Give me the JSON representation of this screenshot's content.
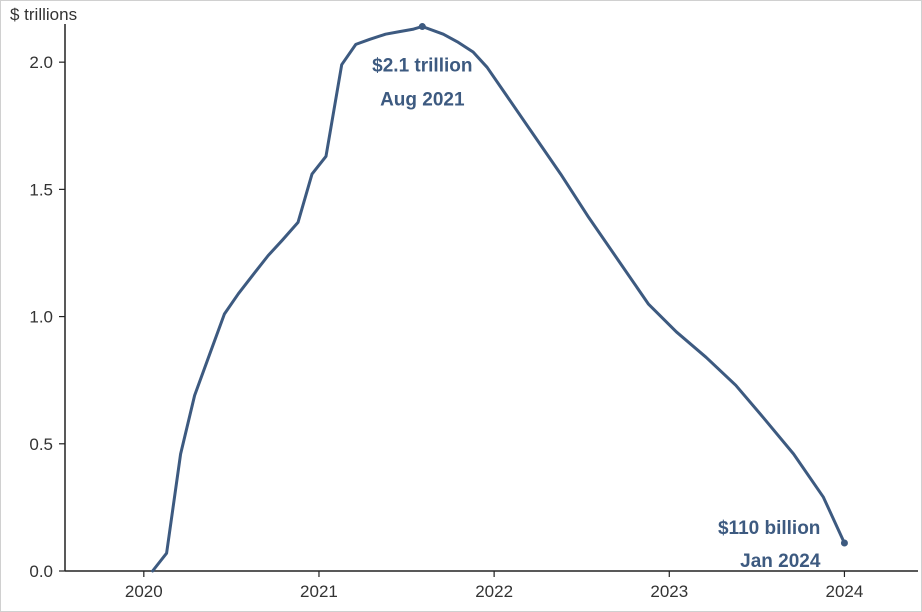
{
  "chart_data": {
    "type": "line",
    "ylabel": "$ trillions",
    "xlim": [
      2019.55,
      2024.42
    ],
    "ylim": [
      0,
      2.15
    ],
    "xticks": [
      "2020",
      "2021",
      "2022",
      "2023",
      "2024"
    ],
    "yticks": [
      "0.0",
      "0.5",
      "1.0",
      "1.5",
      "2.0"
    ],
    "grid": false,
    "line_color": "#3d5a80",
    "series": [
      {
        "x": [
          2020.05,
          2020.13,
          2020.21,
          2020.29,
          2020.38,
          2020.46,
          2020.54,
          2020.63,
          2020.71,
          2020.79,
          2020.88,
          2020.96,
          2021.04,
          2021.13,
          2021.21,
          2021.29,
          2021.38,
          2021.46,
          2021.54,
          2021.59,
          2021.71,
          2021.79,
          2021.88,
          2021.96,
          2022.04,
          2022.21,
          2022.38,
          2022.54,
          2022.71,
          2022.88,
          2023.04,
          2023.21,
          2023.38,
          2023.54,
          2023.71,
          2023.88,
          2024.0
        ],
        "y": [
          0.0,
          0.07,
          0.46,
          0.69,
          0.86,
          1.01,
          1.09,
          1.17,
          1.24,
          1.3,
          1.37,
          1.56,
          1.63,
          1.99,
          2.07,
          2.09,
          2.11,
          2.12,
          2.13,
          2.14,
          2.11,
          2.08,
          2.04,
          1.98,
          1.9,
          1.73,
          1.56,
          1.39,
          1.22,
          1.05,
          0.94,
          0.84,
          0.73,
          0.6,
          0.46,
          0.29,
          0.11
        ]
      }
    ],
    "annotations": [
      {
        "label_line1": "$2.1 trillion",
        "label_line2": "Aug 2021",
        "x": 2021.59,
        "y": 2.14
      },
      {
        "label_line1": "$110 billion",
        "label_line2": "Jan 2024",
        "x": 2024.0,
        "y": 0.11
      }
    ]
  }
}
